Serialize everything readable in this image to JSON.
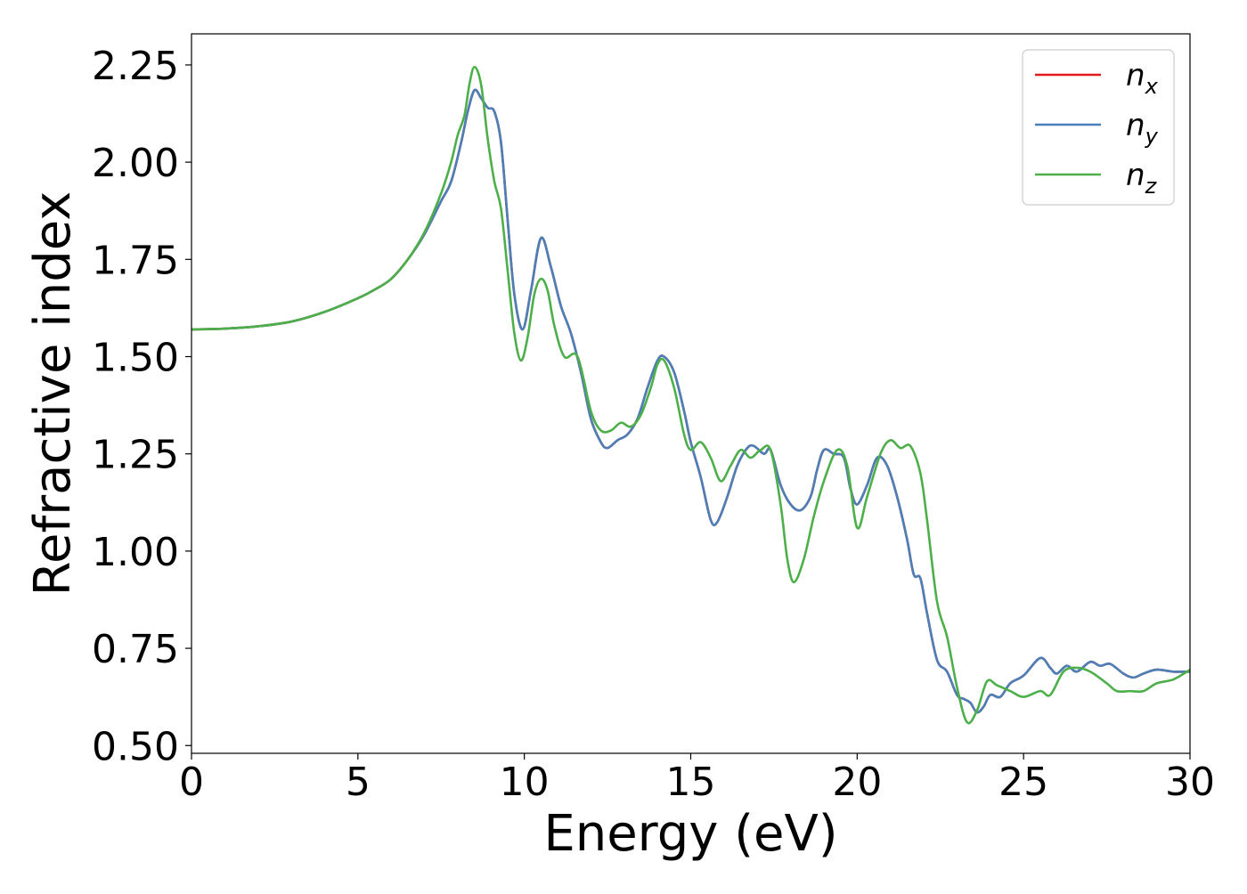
{
  "chart_data": {
    "type": "line",
    "title": "",
    "xlabel": "Energy (eV)",
    "ylabel": "Refractive index",
    "xlim": [
      0,
      30
    ],
    "ylim": [
      0.48,
      2.33
    ],
    "xticks": [
      0,
      5,
      10,
      15,
      20,
      25,
      30
    ],
    "xtick_labels": [
      "0",
      "5",
      "10",
      "15",
      "20",
      "25",
      "30"
    ],
    "yticks": [
      0.5,
      0.75,
      1.0,
      1.25,
      1.5,
      1.75,
      2.0,
      2.25
    ],
    "ytick_labels": [
      "0.50",
      "0.75",
      "1.00",
      "1.25",
      "1.50",
      "1.75",
      "2.00",
      "2.25"
    ],
    "grid": false,
    "legend_position": "top-right",
    "series": [
      {
        "name": "n_x",
        "legend_base": "n",
        "legend_sub": "x",
        "color": "#e41a1c",
        "points": [
          [
            0,
            1.57
          ],
          [
            1,
            1.572
          ],
          [
            2,
            1.578
          ],
          [
            3,
            1.59
          ],
          [
            4,
            1.615
          ],
          [
            5,
            1.65
          ],
          [
            5.5,
            1.672
          ],
          [
            6,
            1.7
          ],
          [
            6.5,
            1.75
          ],
          [
            7,
            1.815
          ],
          [
            7.5,
            1.9
          ],
          [
            7.8,
            1.95
          ],
          [
            8.1,
            2.05
          ],
          [
            8.3,
            2.13
          ],
          [
            8.5,
            2.185
          ],
          [
            8.7,
            2.165
          ],
          [
            8.9,
            2.14
          ],
          [
            9.1,
            2.13
          ],
          [
            9.3,
            2.05
          ],
          [
            9.5,
            1.85
          ],
          [
            9.7,
            1.66
          ],
          [
            9.95,
            1.57
          ],
          [
            10.2,
            1.67
          ],
          [
            10.5,
            1.805
          ],
          [
            10.8,
            1.73
          ],
          [
            11.1,
            1.63
          ],
          [
            11.4,
            1.56
          ],
          [
            11.7,
            1.46
          ],
          [
            12.0,
            1.34
          ],
          [
            12.3,
            1.28
          ],
          [
            12.5,
            1.265
          ],
          [
            12.8,
            1.285
          ],
          [
            13.1,
            1.3
          ],
          [
            13.4,
            1.34
          ],
          [
            13.7,
            1.42
          ],
          [
            14.0,
            1.49
          ],
          [
            14.2,
            1.5
          ],
          [
            14.5,
            1.46
          ],
          [
            14.8,
            1.36
          ],
          [
            15.0,
            1.28
          ],
          [
            15.3,
            1.19
          ],
          [
            15.6,
            1.08
          ],
          [
            15.8,
            1.075
          ],
          [
            16.1,
            1.14
          ],
          [
            16.4,
            1.22
          ],
          [
            16.7,
            1.265
          ],
          [
            16.9,
            1.27
          ],
          [
            17.2,
            1.25
          ],
          [
            17.4,
            1.26
          ],
          [
            17.7,
            1.17
          ],
          [
            18.0,
            1.12
          ],
          [
            18.3,
            1.105
          ],
          [
            18.6,
            1.14
          ],
          [
            18.8,
            1.21
          ],
          [
            19.0,
            1.26
          ],
          [
            19.3,
            1.25
          ],
          [
            19.6,
            1.24
          ],
          [
            19.8,
            1.16
          ],
          [
            20.0,
            1.12
          ],
          [
            20.3,
            1.17
          ],
          [
            20.6,
            1.24
          ],
          [
            20.9,
            1.22
          ],
          [
            21.2,
            1.14
          ],
          [
            21.5,
            1.03
          ],
          [
            21.7,
            0.94
          ],
          [
            21.9,
            0.93
          ],
          [
            22.1,
            0.84
          ],
          [
            22.4,
            0.72
          ],
          [
            22.7,
            0.69
          ],
          [
            23.0,
            0.63
          ],
          [
            23.2,
            0.62
          ],
          [
            23.4,
            0.61
          ],
          [
            23.6,
            0.585
          ],
          [
            23.8,
            0.6
          ],
          [
            24.0,
            0.63
          ],
          [
            24.3,
            0.625
          ],
          [
            24.6,
            0.66
          ],
          [
            25.0,
            0.68
          ],
          [
            25.5,
            0.725
          ],
          [
            25.8,
            0.7
          ],
          [
            26.0,
            0.685
          ],
          [
            26.3,
            0.705
          ],
          [
            26.6,
            0.69
          ],
          [
            27.0,
            0.715
          ],
          [
            27.3,
            0.705
          ],
          [
            27.6,
            0.71
          ],
          [
            28.0,
            0.685
          ],
          [
            28.3,
            0.675
          ],
          [
            28.6,
            0.685
          ],
          [
            29.0,
            0.695
          ],
          [
            29.5,
            0.69
          ],
          [
            30,
            0.69
          ]
        ]
      },
      {
        "name": "n_y",
        "legend_base": "n",
        "legend_sub": "y",
        "color": "#4a7fb8",
        "points": [
          [
            0,
            1.57
          ],
          [
            1,
            1.572
          ],
          [
            2,
            1.578
          ],
          [
            3,
            1.59
          ],
          [
            4,
            1.615
          ],
          [
            5,
            1.65
          ],
          [
            5.5,
            1.672
          ],
          [
            6,
            1.7
          ],
          [
            6.5,
            1.75
          ],
          [
            7,
            1.815
          ],
          [
            7.5,
            1.9
          ],
          [
            7.8,
            1.95
          ],
          [
            8.1,
            2.05
          ],
          [
            8.3,
            2.13
          ],
          [
            8.5,
            2.185
          ],
          [
            8.7,
            2.165
          ],
          [
            8.9,
            2.14
          ],
          [
            9.1,
            2.13
          ],
          [
            9.3,
            2.05
          ],
          [
            9.5,
            1.85
          ],
          [
            9.7,
            1.66
          ],
          [
            9.95,
            1.57
          ],
          [
            10.2,
            1.67
          ],
          [
            10.5,
            1.805
          ],
          [
            10.8,
            1.73
          ],
          [
            11.1,
            1.63
          ],
          [
            11.4,
            1.56
          ],
          [
            11.7,
            1.46
          ],
          [
            12.0,
            1.34
          ],
          [
            12.3,
            1.28
          ],
          [
            12.5,
            1.265
          ],
          [
            12.8,
            1.285
          ],
          [
            13.1,
            1.3
          ],
          [
            13.4,
            1.34
          ],
          [
            13.7,
            1.42
          ],
          [
            14.0,
            1.49
          ],
          [
            14.2,
            1.5
          ],
          [
            14.5,
            1.46
          ],
          [
            14.8,
            1.36
          ],
          [
            15.0,
            1.28
          ],
          [
            15.3,
            1.19
          ],
          [
            15.6,
            1.08
          ],
          [
            15.8,
            1.075
          ],
          [
            16.1,
            1.14
          ],
          [
            16.4,
            1.22
          ],
          [
            16.7,
            1.265
          ],
          [
            16.9,
            1.27
          ],
          [
            17.2,
            1.25
          ],
          [
            17.4,
            1.26
          ],
          [
            17.7,
            1.17
          ],
          [
            18.0,
            1.12
          ],
          [
            18.3,
            1.105
          ],
          [
            18.6,
            1.14
          ],
          [
            18.8,
            1.21
          ],
          [
            19.0,
            1.26
          ],
          [
            19.3,
            1.25
          ],
          [
            19.6,
            1.24
          ],
          [
            19.8,
            1.16
          ],
          [
            20.0,
            1.12
          ],
          [
            20.3,
            1.17
          ],
          [
            20.6,
            1.24
          ],
          [
            20.9,
            1.22
          ],
          [
            21.2,
            1.14
          ],
          [
            21.5,
            1.03
          ],
          [
            21.7,
            0.94
          ],
          [
            21.9,
            0.93
          ],
          [
            22.1,
            0.84
          ],
          [
            22.4,
            0.72
          ],
          [
            22.7,
            0.69
          ],
          [
            23.0,
            0.63
          ],
          [
            23.2,
            0.62
          ],
          [
            23.4,
            0.61
          ],
          [
            23.6,
            0.585
          ],
          [
            23.8,
            0.6
          ],
          [
            24.0,
            0.63
          ],
          [
            24.3,
            0.625
          ],
          [
            24.6,
            0.66
          ],
          [
            25.0,
            0.68
          ],
          [
            25.5,
            0.725
          ],
          [
            25.8,
            0.7
          ],
          [
            26.0,
            0.685
          ],
          [
            26.3,
            0.705
          ],
          [
            26.6,
            0.69
          ],
          [
            27.0,
            0.715
          ],
          [
            27.3,
            0.705
          ],
          [
            27.6,
            0.71
          ],
          [
            28.0,
            0.685
          ],
          [
            28.3,
            0.675
          ],
          [
            28.6,
            0.685
          ],
          [
            29.0,
            0.695
          ],
          [
            29.5,
            0.69
          ],
          [
            30,
            0.69
          ]
        ]
      },
      {
        "name": "n_z",
        "legend_base": "n",
        "legend_sub": "z",
        "color": "#4daf4a",
        "points": [
          [
            0,
            1.57
          ],
          [
            1,
            1.572
          ],
          [
            2,
            1.578
          ],
          [
            3,
            1.59
          ],
          [
            4,
            1.615
          ],
          [
            5,
            1.65
          ],
          [
            5.5,
            1.672
          ],
          [
            6,
            1.7
          ],
          [
            6.5,
            1.75
          ],
          [
            7,
            1.82
          ],
          [
            7.5,
            1.92
          ],
          [
            7.8,
            2.0
          ],
          [
            8.0,
            2.07
          ],
          [
            8.2,
            2.12
          ],
          [
            8.35,
            2.2
          ],
          [
            8.5,
            2.245
          ],
          [
            8.7,
            2.2
          ],
          [
            8.9,
            2.06
          ],
          [
            9.1,
            1.95
          ],
          [
            9.3,
            1.88
          ],
          [
            9.5,
            1.72
          ],
          [
            9.7,
            1.56
          ],
          [
            9.9,
            1.49
          ],
          [
            10.1,
            1.55
          ],
          [
            10.3,
            1.66
          ],
          [
            10.5,
            1.7
          ],
          [
            10.7,
            1.67
          ],
          [
            10.9,
            1.58
          ],
          [
            11.2,
            1.5
          ],
          [
            11.6,
            1.5
          ],
          [
            12.0,
            1.36
          ],
          [
            12.3,
            1.31
          ],
          [
            12.6,
            1.31
          ],
          [
            12.9,
            1.33
          ],
          [
            13.2,
            1.32
          ],
          [
            13.5,
            1.35
          ],
          [
            13.8,
            1.42
          ],
          [
            14.0,
            1.48
          ],
          [
            14.2,
            1.49
          ],
          [
            14.5,
            1.42
          ],
          [
            14.8,
            1.3
          ],
          [
            15.0,
            1.26
          ],
          [
            15.3,
            1.28
          ],
          [
            15.6,
            1.24
          ],
          [
            15.9,
            1.18
          ],
          [
            16.2,
            1.22
          ],
          [
            16.5,
            1.26
          ],
          [
            16.8,
            1.24
          ],
          [
            17.1,
            1.26
          ],
          [
            17.4,
            1.26
          ],
          [
            17.7,
            1.12
          ],
          [
            17.9,
            0.98
          ],
          [
            18.1,
            0.92
          ],
          [
            18.4,
            0.98
          ],
          [
            18.7,
            1.09
          ],
          [
            19.0,
            1.18
          ],
          [
            19.4,
            1.26
          ],
          [
            19.7,
            1.22
          ],
          [
            20.0,
            1.06
          ],
          [
            20.3,
            1.14
          ],
          [
            20.7,
            1.25
          ],
          [
            21.0,
            1.285
          ],
          [
            21.3,
            1.265
          ],
          [
            21.6,
            1.27
          ],
          [
            21.9,
            1.2
          ],
          [
            22.1,
            1.08
          ],
          [
            22.4,
            0.87
          ],
          [
            22.7,
            0.78
          ],
          [
            23.0,
            0.65
          ],
          [
            23.3,
            0.56
          ],
          [
            23.6,
            0.59
          ],
          [
            23.9,
            0.665
          ],
          [
            24.2,
            0.655
          ],
          [
            24.6,
            0.64
          ],
          [
            25.0,
            0.625
          ],
          [
            25.5,
            0.64
          ],
          [
            25.8,
            0.63
          ],
          [
            26.2,
            0.69
          ],
          [
            26.6,
            0.7
          ],
          [
            27.0,
            0.69
          ],
          [
            27.5,
            0.66
          ],
          [
            27.8,
            0.64
          ],
          [
            28.2,
            0.64
          ],
          [
            28.6,
            0.64
          ],
          [
            29.0,
            0.66
          ],
          [
            29.5,
            0.67
          ],
          [
            30,
            0.695
          ]
        ]
      }
    ]
  }
}
